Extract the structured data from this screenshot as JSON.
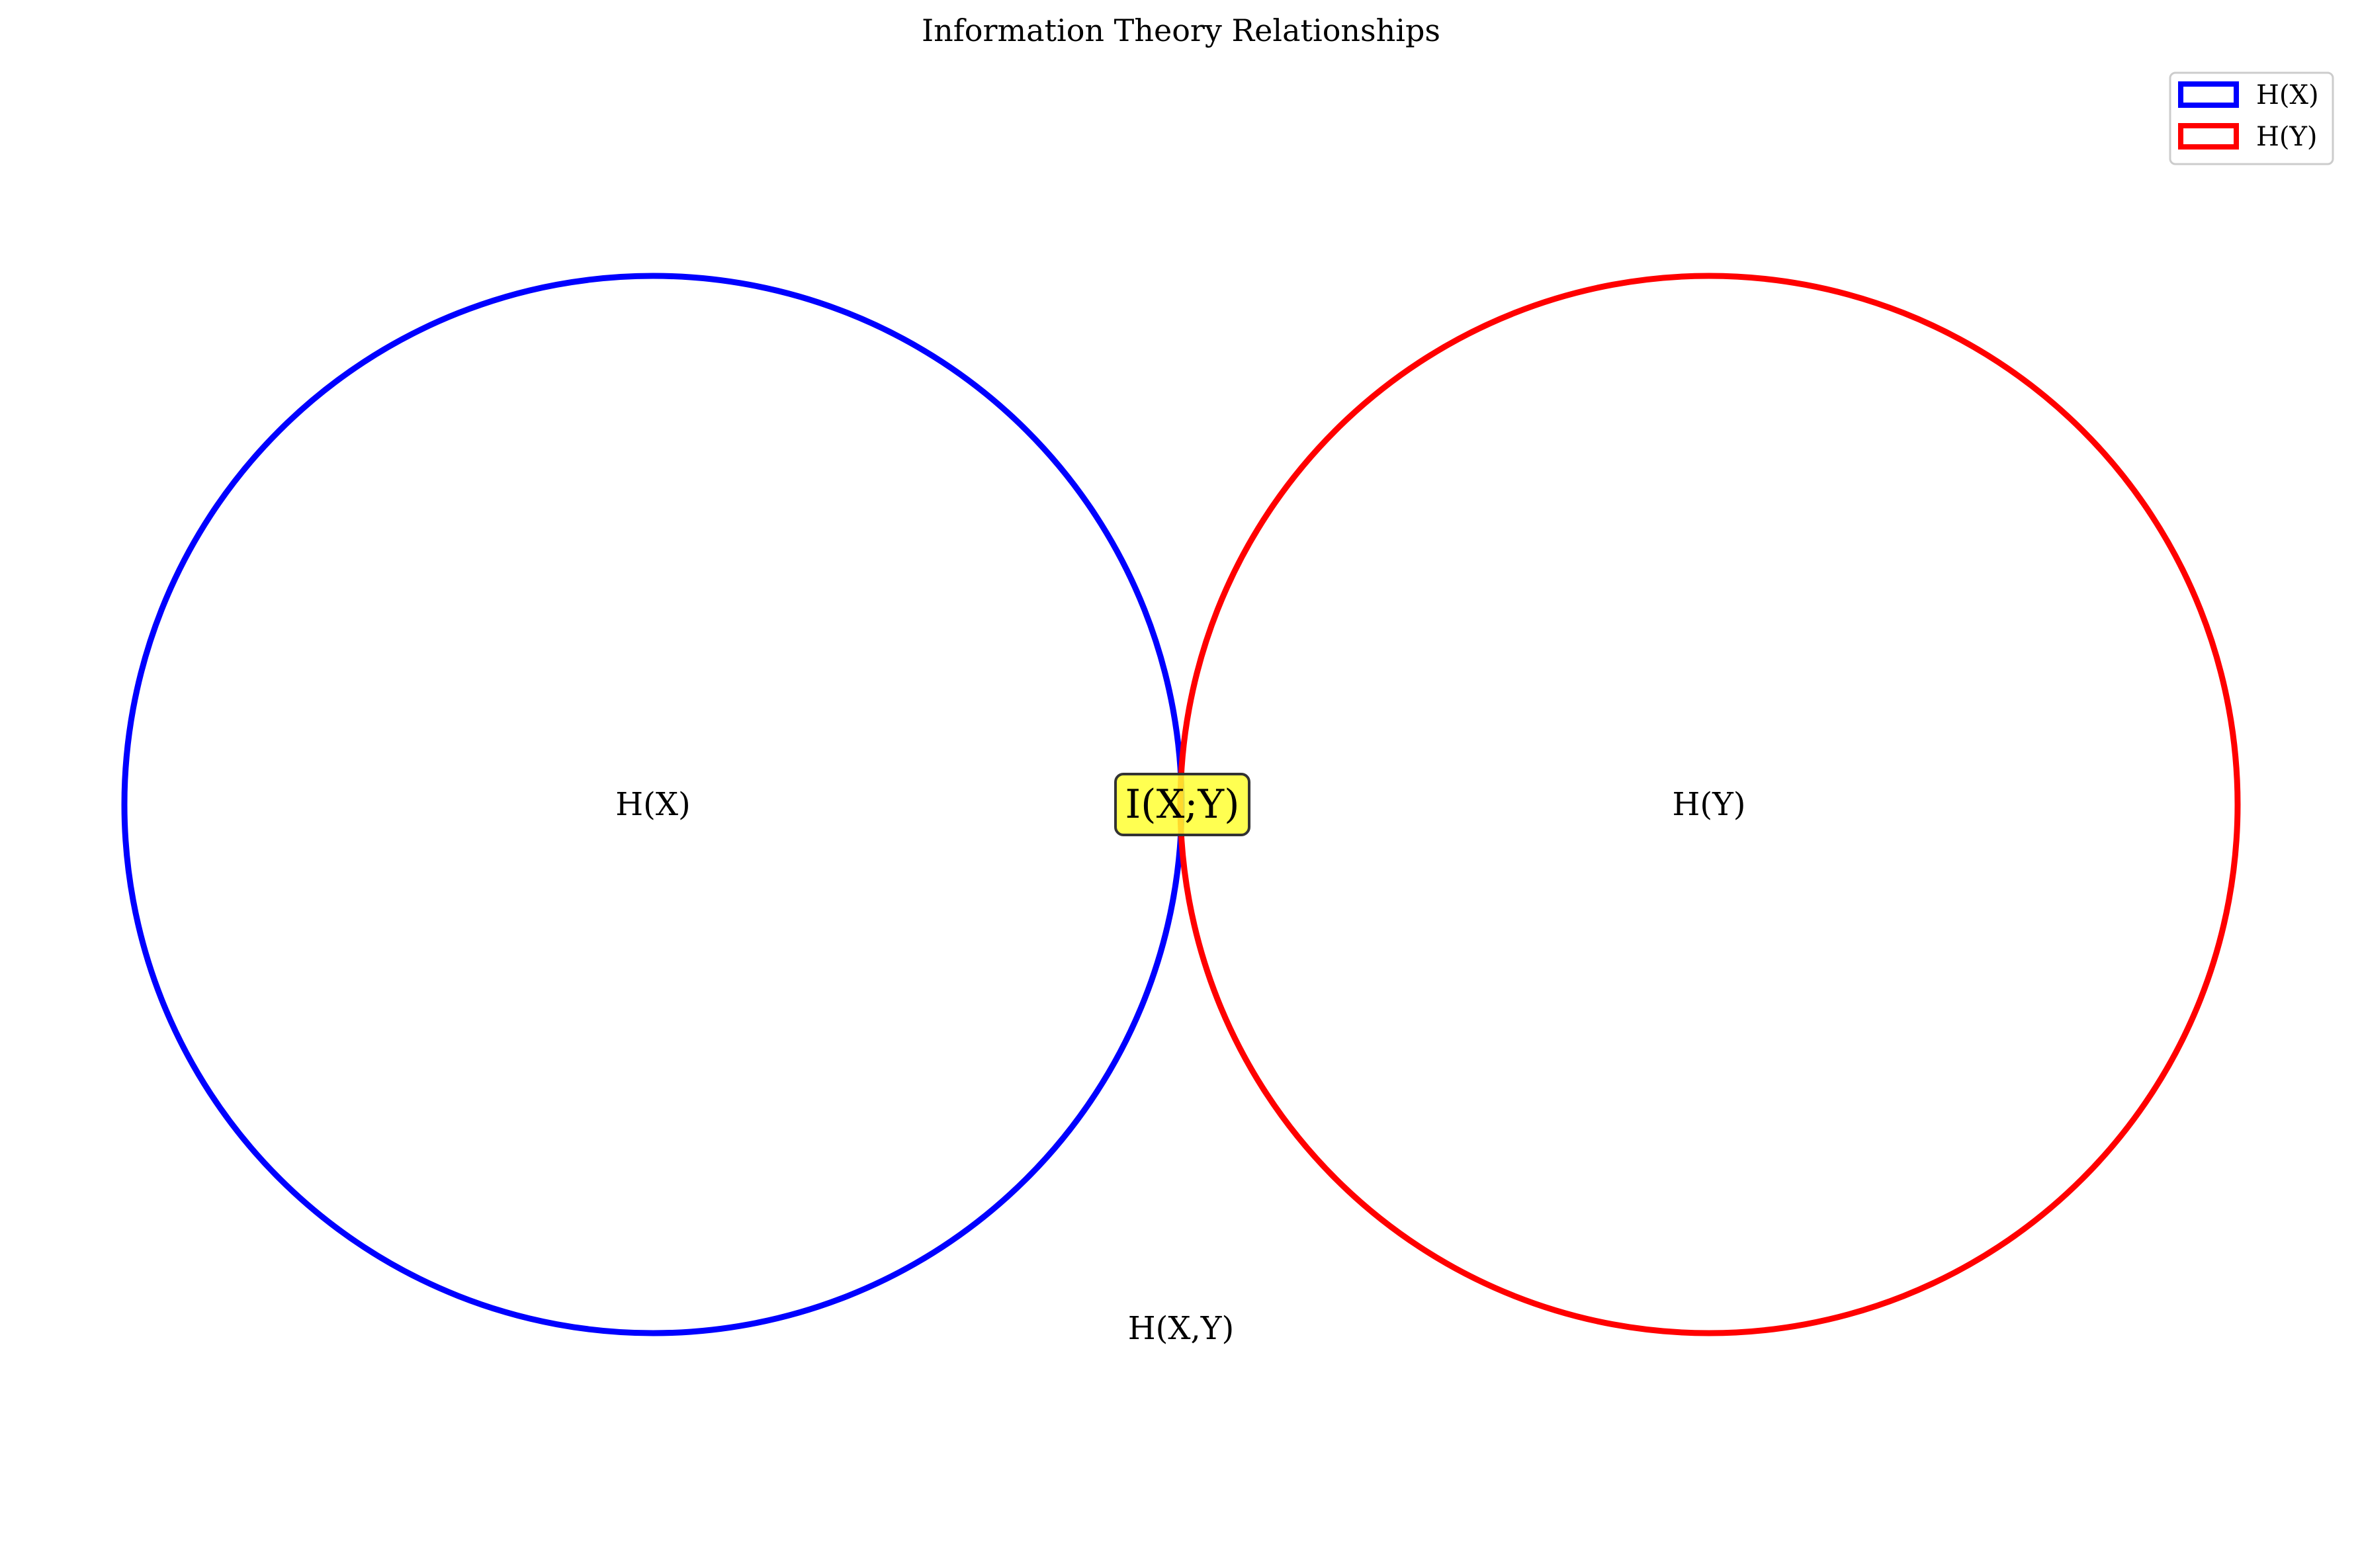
{
  "title": "Information Theory Relationships",
  "sets": [
    {
      "name": "H(X)",
      "color": "#0000ff"
    },
    {
      "name": "H(Y)",
      "color": "#ff0000"
    }
  ],
  "labels": {
    "hx": "H(X)",
    "hy": "H(Y)",
    "mutual_information": "I(X;Y)",
    "joint_entropy": "H(X,Y)"
  },
  "mutual_information_box_color": "#ffff33",
  "legend": {
    "placement": "top-right",
    "entries": [
      {
        "label": "H(X)",
        "color": "#0000ff"
      },
      {
        "label": "H(Y)",
        "color": "#ff0000"
      }
    ]
  }
}
